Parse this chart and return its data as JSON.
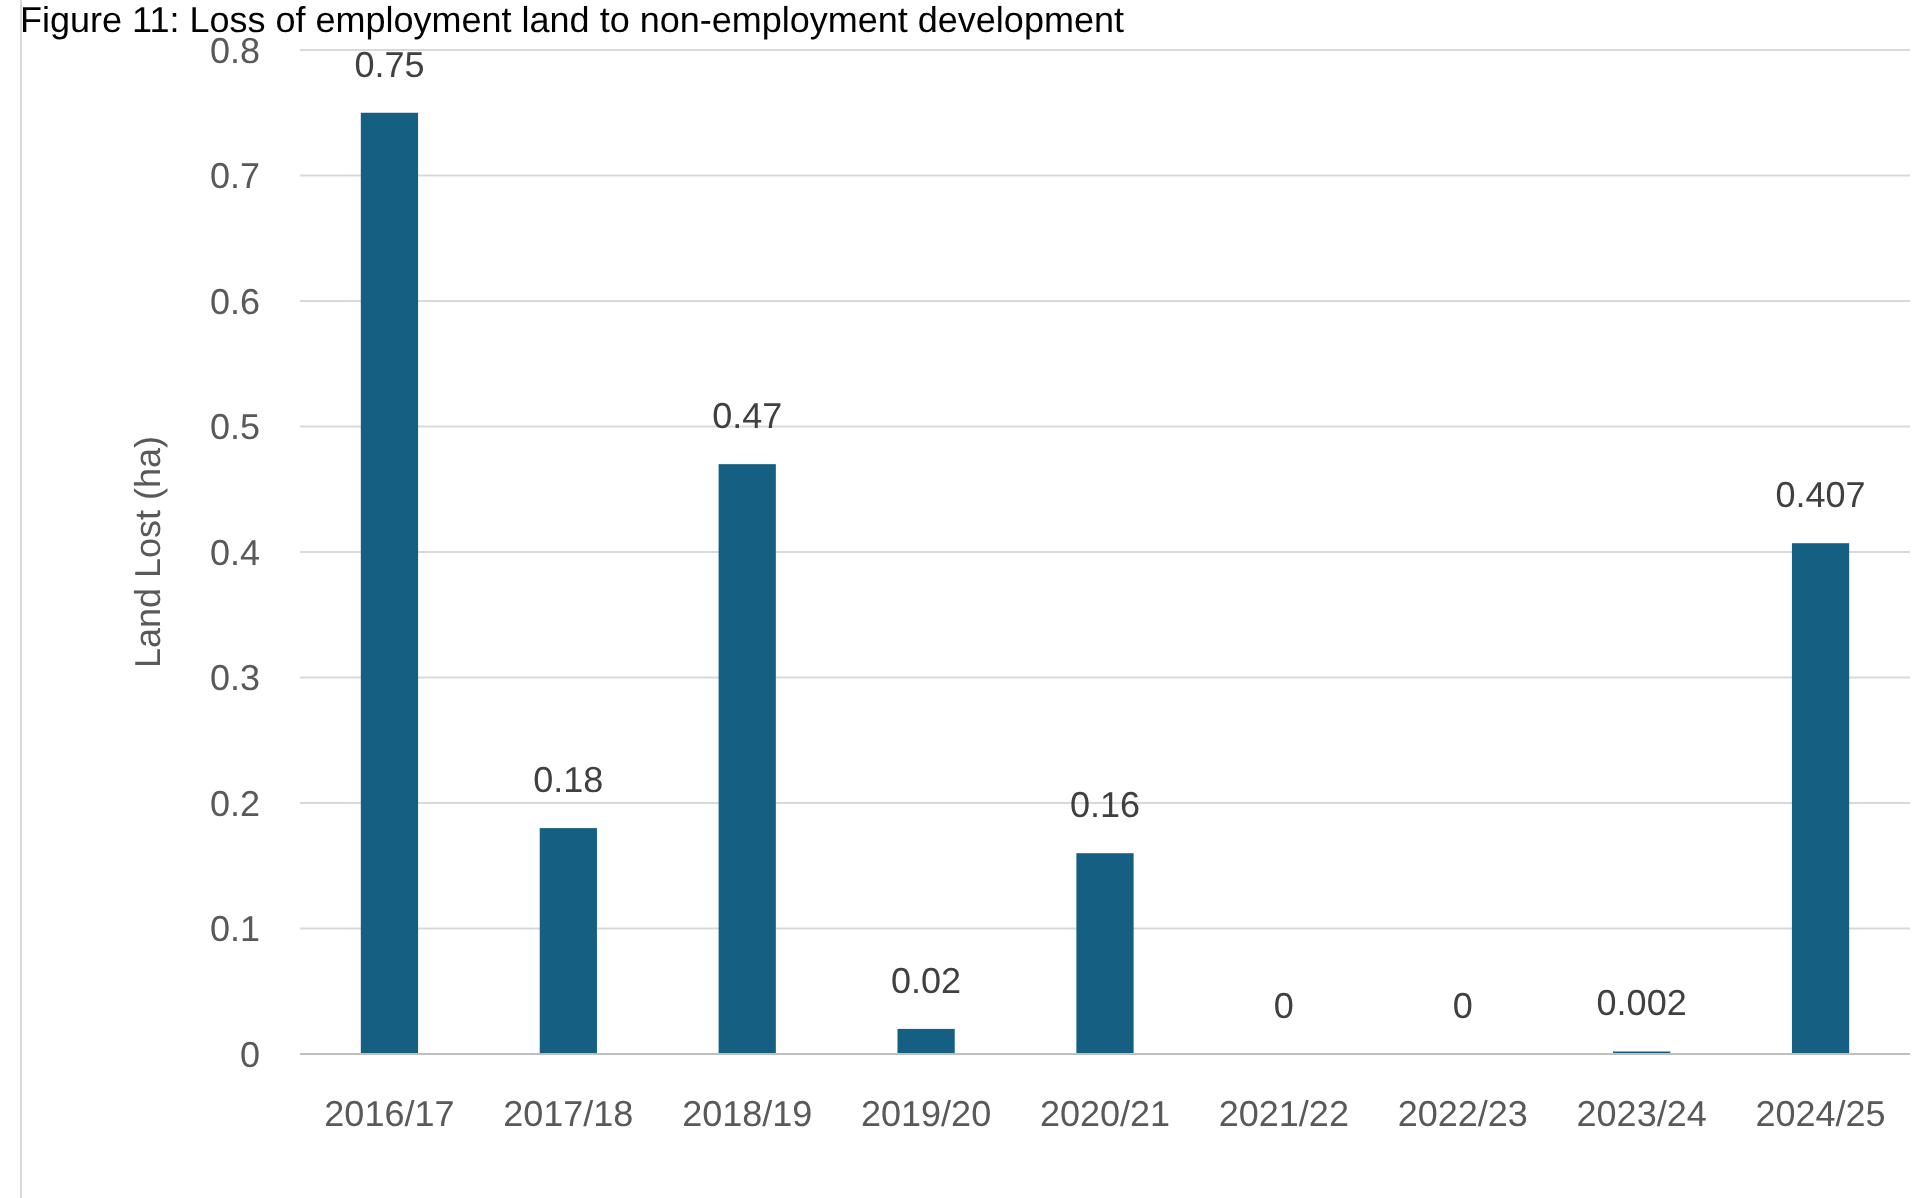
{
  "chart_data": {
    "type": "bar",
    "title": "Figure 11: Loss of employment land to non-employment development",
    "ylabel": "Land Lost (ha)",
    "categories": [
      "2016/17",
      "2017/18",
      "2018/19",
      "2019/20",
      "2020/21",
      "2021/22",
      "2022/23",
      "2023/24",
      "2024/25"
    ],
    "values": [
      0.75,
      0.18,
      0.47,
      0.02,
      0.16,
      0,
      0,
      0.002,
      0.407
    ],
    "color": "#156082",
    "ylim": [
      0,
      0.8
    ],
    "yticks": [
      {
        "value": 0,
        "label": "0"
      },
      {
        "value": 0.1,
        "label": "0.1"
      },
      {
        "value": 0.2,
        "label": "0.2"
      },
      {
        "value": 0.3,
        "label": "0.3"
      },
      {
        "value": 0.4,
        "label": "0.4"
      },
      {
        "value": 0.5,
        "label": "0.5"
      },
      {
        "value": 0.6,
        "label": "0.6"
      },
      {
        "value": 0.7,
        "label": "0.7"
      },
      {
        "value": 0.8,
        "label": "0.8"
      }
    ],
    "grid": "y",
    "data_labels": true
  }
}
